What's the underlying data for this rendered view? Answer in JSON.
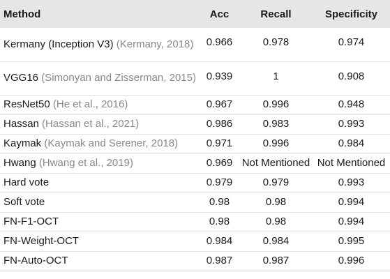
{
  "table": {
    "headers": {
      "method": "Method",
      "acc": "Acc",
      "recall": "Recall",
      "specificity": "Specificity"
    },
    "rows": [
      {
        "name": "Kermany (Inception V3)",
        "citation": "(Kermany, 2018)",
        "acc": "0.966",
        "recall": "0.978",
        "specificity": "0.974"
      },
      {
        "name": "VGG16",
        "citation": "(Simonyan and Zisserman, 2015)",
        "acc": "0.939",
        "recall": "1",
        "specificity": "0.908"
      },
      {
        "name": "ResNet50",
        "citation": "(He et al., 2016)",
        "acc": "0.967",
        "recall": "0.996",
        "specificity": "0.948"
      },
      {
        "name": "Hassan",
        "citation": "(Hassan et al., 2021)",
        "acc": "0.986",
        "recall": "0.983",
        "specificity": "0.993"
      },
      {
        "name": "Kaymak",
        "citation": "(Kaymak and Serener, 2018)",
        "acc": "0.971",
        "recall": "0.996",
        "specificity": "0.984"
      },
      {
        "name": "Hwang",
        "citation": "(Hwang et al., 2019)",
        "acc": "0.969",
        "recall": "Not Mentioned",
        "specificity": "Not Mentioned"
      },
      {
        "name": "Hard vote",
        "citation": "",
        "acc": "0.979",
        "recall": "0.979",
        "specificity": "0.993"
      },
      {
        "name": "Soft vote",
        "citation": "",
        "acc": "0.98",
        "recall": "0.98",
        "specificity": "0.994"
      },
      {
        "name": "FN-F1-OCT",
        "citation": "",
        "acc": "0.98",
        "recall": "0.98",
        "specificity": "0.994"
      },
      {
        "name": "FN-Weight-OCT",
        "citation": "",
        "acc": "0.984",
        "recall": "0.984",
        "specificity": "0.995"
      },
      {
        "name": "FN-Auto-OCT",
        "citation": "",
        "acc": "0.987",
        "recall": "0.987",
        "specificity": "0.996"
      }
    ]
  }
}
